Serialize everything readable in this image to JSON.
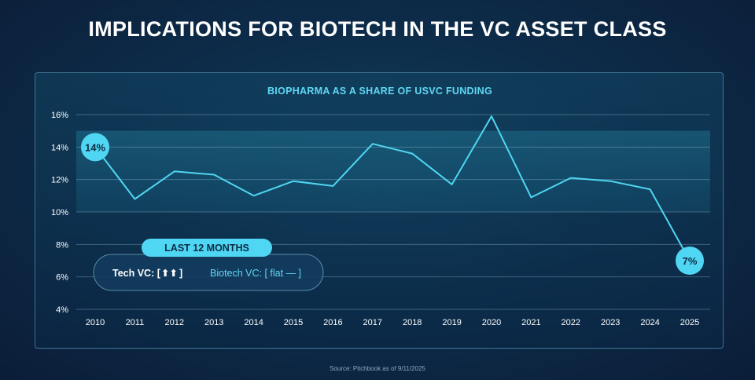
{
  "page": {
    "title": "IMPLICATIONS FOR BIOTECH IN THE VC ASSET CLASS",
    "source": "Source: Pitchbook as of 9/11/2025"
  },
  "colors": {
    "accent": "#4fd6f2",
    "background": "#0d2d4a"
  },
  "chart_data": {
    "type": "line",
    "title": "BIOPHARMA AS A SHARE OF USVC FUNDING",
    "xlabel": "",
    "ylabel": "",
    "categories": [
      "2010",
      "2011",
      "2012",
      "2013",
      "2014",
      "2015",
      "2016",
      "2017",
      "2018",
      "2019",
      "2020",
      "2021",
      "2022",
      "2023",
      "2024",
      "2025"
    ],
    "series": [
      {
        "name": "Biopharma share of USVC funding",
        "values": [
          14.0,
          10.8,
          12.5,
          12.3,
          11.0,
          11.9,
          11.6,
          14.2,
          13.6,
          11.7,
          15.9,
          10.9,
          12.1,
          11.9,
          11.4,
          7.0
        ]
      }
    ],
    "ylim": [
      4,
      16
    ],
    "yticks": [
      "4%",
      "6%",
      "8%",
      "10%",
      "12%",
      "14%",
      "16%"
    ],
    "grid": true,
    "callouts": [
      {
        "index": 0,
        "label": "14%"
      },
      {
        "index": 15,
        "label": "7%"
      }
    ],
    "legend": {
      "header": "LAST 12 MONTHS",
      "tech_label": "Tech VC: [",
      "tech_arrows": "⬆⬆",
      "tech_close": "]",
      "biotech_label": "Biotech VC: [ flat — ]"
    }
  }
}
